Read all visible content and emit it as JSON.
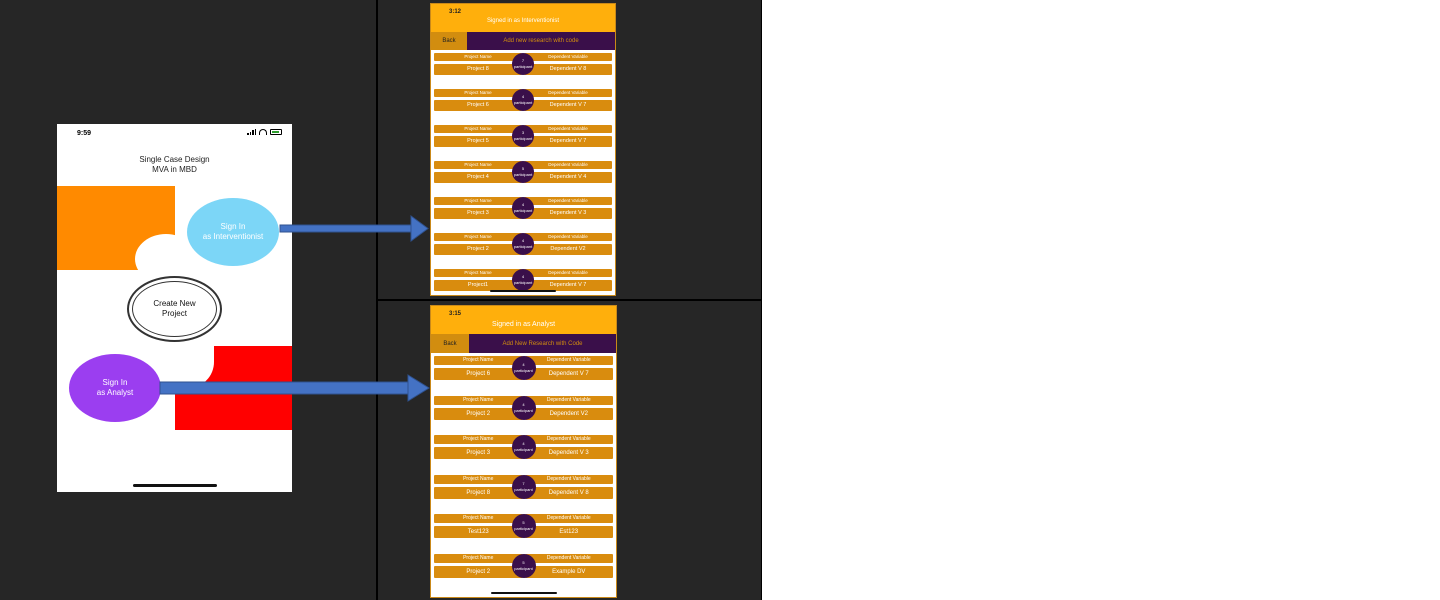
{
  "main_phone": {
    "time": "9:59",
    "title_line1": "Single Case Design",
    "title_line2": "MVA in MBD",
    "sign_in_interventionist": [
      "Sign In",
      "as Interventionist"
    ],
    "create_project": [
      "Create New",
      "Project"
    ],
    "sign_in_analyst": [
      "Sign In",
      "as Analyst"
    ]
  },
  "interventionist_screen": {
    "time": "3:12",
    "header": "Signed in as Interventionist",
    "back_label": "Back",
    "add_label": "Add new research with code",
    "name_header": "Project Name",
    "variable_header": "Dependent Variable",
    "badge_label": "participant",
    "projects": [
      {
        "name": "Project 8",
        "variable": "Dependent V 8",
        "count": "7"
      },
      {
        "name": "Project 6",
        "variable": "Dependent V 7",
        "count": "4"
      },
      {
        "name": "Project 5",
        "variable": "Dependent V 7",
        "count": "3"
      },
      {
        "name": "Project 4",
        "variable": "Dependent V 4",
        "count": "5"
      },
      {
        "name": "Project 3",
        "variable": "Dependent V 3",
        "count": "4"
      },
      {
        "name": "Project 2",
        "variable": "Dependent V2",
        "count": "4"
      },
      {
        "name": "Project1",
        "variable": "Dependent V 7",
        "count": "4"
      }
    ]
  },
  "analyst_screen": {
    "time": "3:15",
    "header": "Signed in as Analyst",
    "back_label": "Back",
    "add_label": "Add New Research with Code",
    "name_header": "Project Name",
    "variable_header": "Dependent Variable",
    "badge_label": "participant",
    "projects": [
      {
        "name": "Project 6",
        "variable": "Dependent V 7",
        "count": "4"
      },
      {
        "name": "Project 2",
        "variable": "Dependent V2",
        "count": "4"
      },
      {
        "name": "Project 3",
        "variable": "Dependent V 3",
        "count": "4"
      },
      {
        "name": "Project 8",
        "variable": "Dependent V 8",
        "count": "7"
      },
      {
        "name": "Test123",
        "variable": "Est123",
        "count": "5"
      },
      {
        "name": "Project 2",
        "variable": "Example DV",
        "count": "5"
      }
    ]
  },
  "colors": {
    "background_dark": "#262626",
    "orange": "#ff8a00",
    "red": "#ff0000",
    "light_blue": "#7cd6f7",
    "purple": "#9b3ef0",
    "amber_header": "#ffaf0c",
    "card_orange": "#d98c0e",
    "dark_purple": "#3a0f4a",
    "arrow_blue": "#4472c4"
  }
}
